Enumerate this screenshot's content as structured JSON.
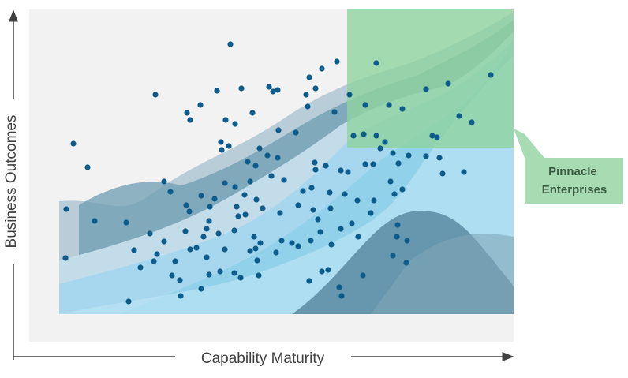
{
  "chart_data": {
    "type": "scatter",
    "x_label": "Capability Maturity",
    "y_label": "Business Outcomes",
    "callout": [
      "Pinnacle",
      "Enterprises"
    ],
    "xlim": [
      0,
      614
    ],
    "ylim": [
      0,
      421
    ],
    "x": [
      255,
      390,
      371,
      440,
      355,
      585,
      160,
      238,
      269,
      304,
      309,
      315,
      351,
      363,
      406,
      353,
      217,
      200,
      204,
      283,
      261,
      249,
      531,
      503,
      426,
      456,
      473,
      545,
      561,
      387,
      316,
      338,
      243,
      253,
      244,
      56,
      74,
      440,
      411,
      451,
      445,
      424,
      511,
      517,
      292,
      302,
      277,
      287,
      315,
      362,
      376,
      363,
      395,
      404,
      426,
      436,
      461,
      468,
      481,
      503,
      520,
      524,
      551,
      171,
      179,
      218,
      235,
      248,
      261,
      280,
      273,
      288,
      307,
      323,
      347,
      358,
      381,
      400,
      437,
      416,
      458,
      463,
      473,
      47,
      83,
      123,
      199,
      203,
      229,
      228,
      263,
      265,
      274,
      296,
      318,
      341,
      360,
      366,
      382,
      395,
      409,
      433,
      153,
      171,
      198,
      225,
      221,
      240,
      260,
      285,
      293,
      320,
      333,
      341,
      357,
      369,
      383,
      417,
      467,
      466,
      46,
      133,
      162,
      158,
      185,
      204,
      212,
      225,
      248,
      280,
      287,
      289,
      313,
      479,
      461,
      478,
      141,
      181,
      191,
      228,
      242,
      260,
      268,
      291,
      371,
      379,
      355,
      423,
      192,
      218,
      393,
      396,
      126
    ],
    "series": [
      {
        "color": "#0d5c8c",
        "values": [
          377,
          355,
          346,
          353,
          335,
          338,
          313,
          318,
          321,
          323,
          317,
          319,
          313,
          321,
          313,
          298,
          300,
          290,
          281,
          290,
          276,
          281,
          327,
          320,
          300,
          300,
          295,
          286,
          278,
          291,
          268,
          265,
          253,
          248,
          243,
          251,
          221,
          261,
          261,
          253,
          245,
          263,
          261,
          259,
          245,
          236,
          228,
          223,
          233,
          227,
          223,
          218,
          217,
          215,
          225,
          225,
          239,
          226,
          236,
          235,
          233,
          213,
          215,
          203,
          190,
          185,
          181,
          201,
          196,
          203,
          186,
          180,
          210,
          205,
          191,
          195,
          189,
          187,
          179,
          179,
          203,
          187,
          193,
          168,
          153,
          151,
          173,
          165,
          171,
          153,
          171,
          159,
          161,
          169,
          163,
          173,
          167,
          155,
          169,
          143,
          150,
          163,
          137,
          127,
          140,
          143,
          133,
          137,
          141,
          133,
          125,
          128,
          125,
          121,
          128,
          139,
          123,
          133,
          148,
          133,
          106,
          116,
          111,
          102,
          102,
          117,
          119,
          107,
          117,
          115,
          118,
          103,
          113,
          128,
          109,
          100,
          94,
          84,
          78,
          85,
          89,
          87,
          81,
          84,
          89,
          91,
          77,
          84,
          58,
          67,
          69,
          58,
          51
        ]
      }
    ]
  }
}
